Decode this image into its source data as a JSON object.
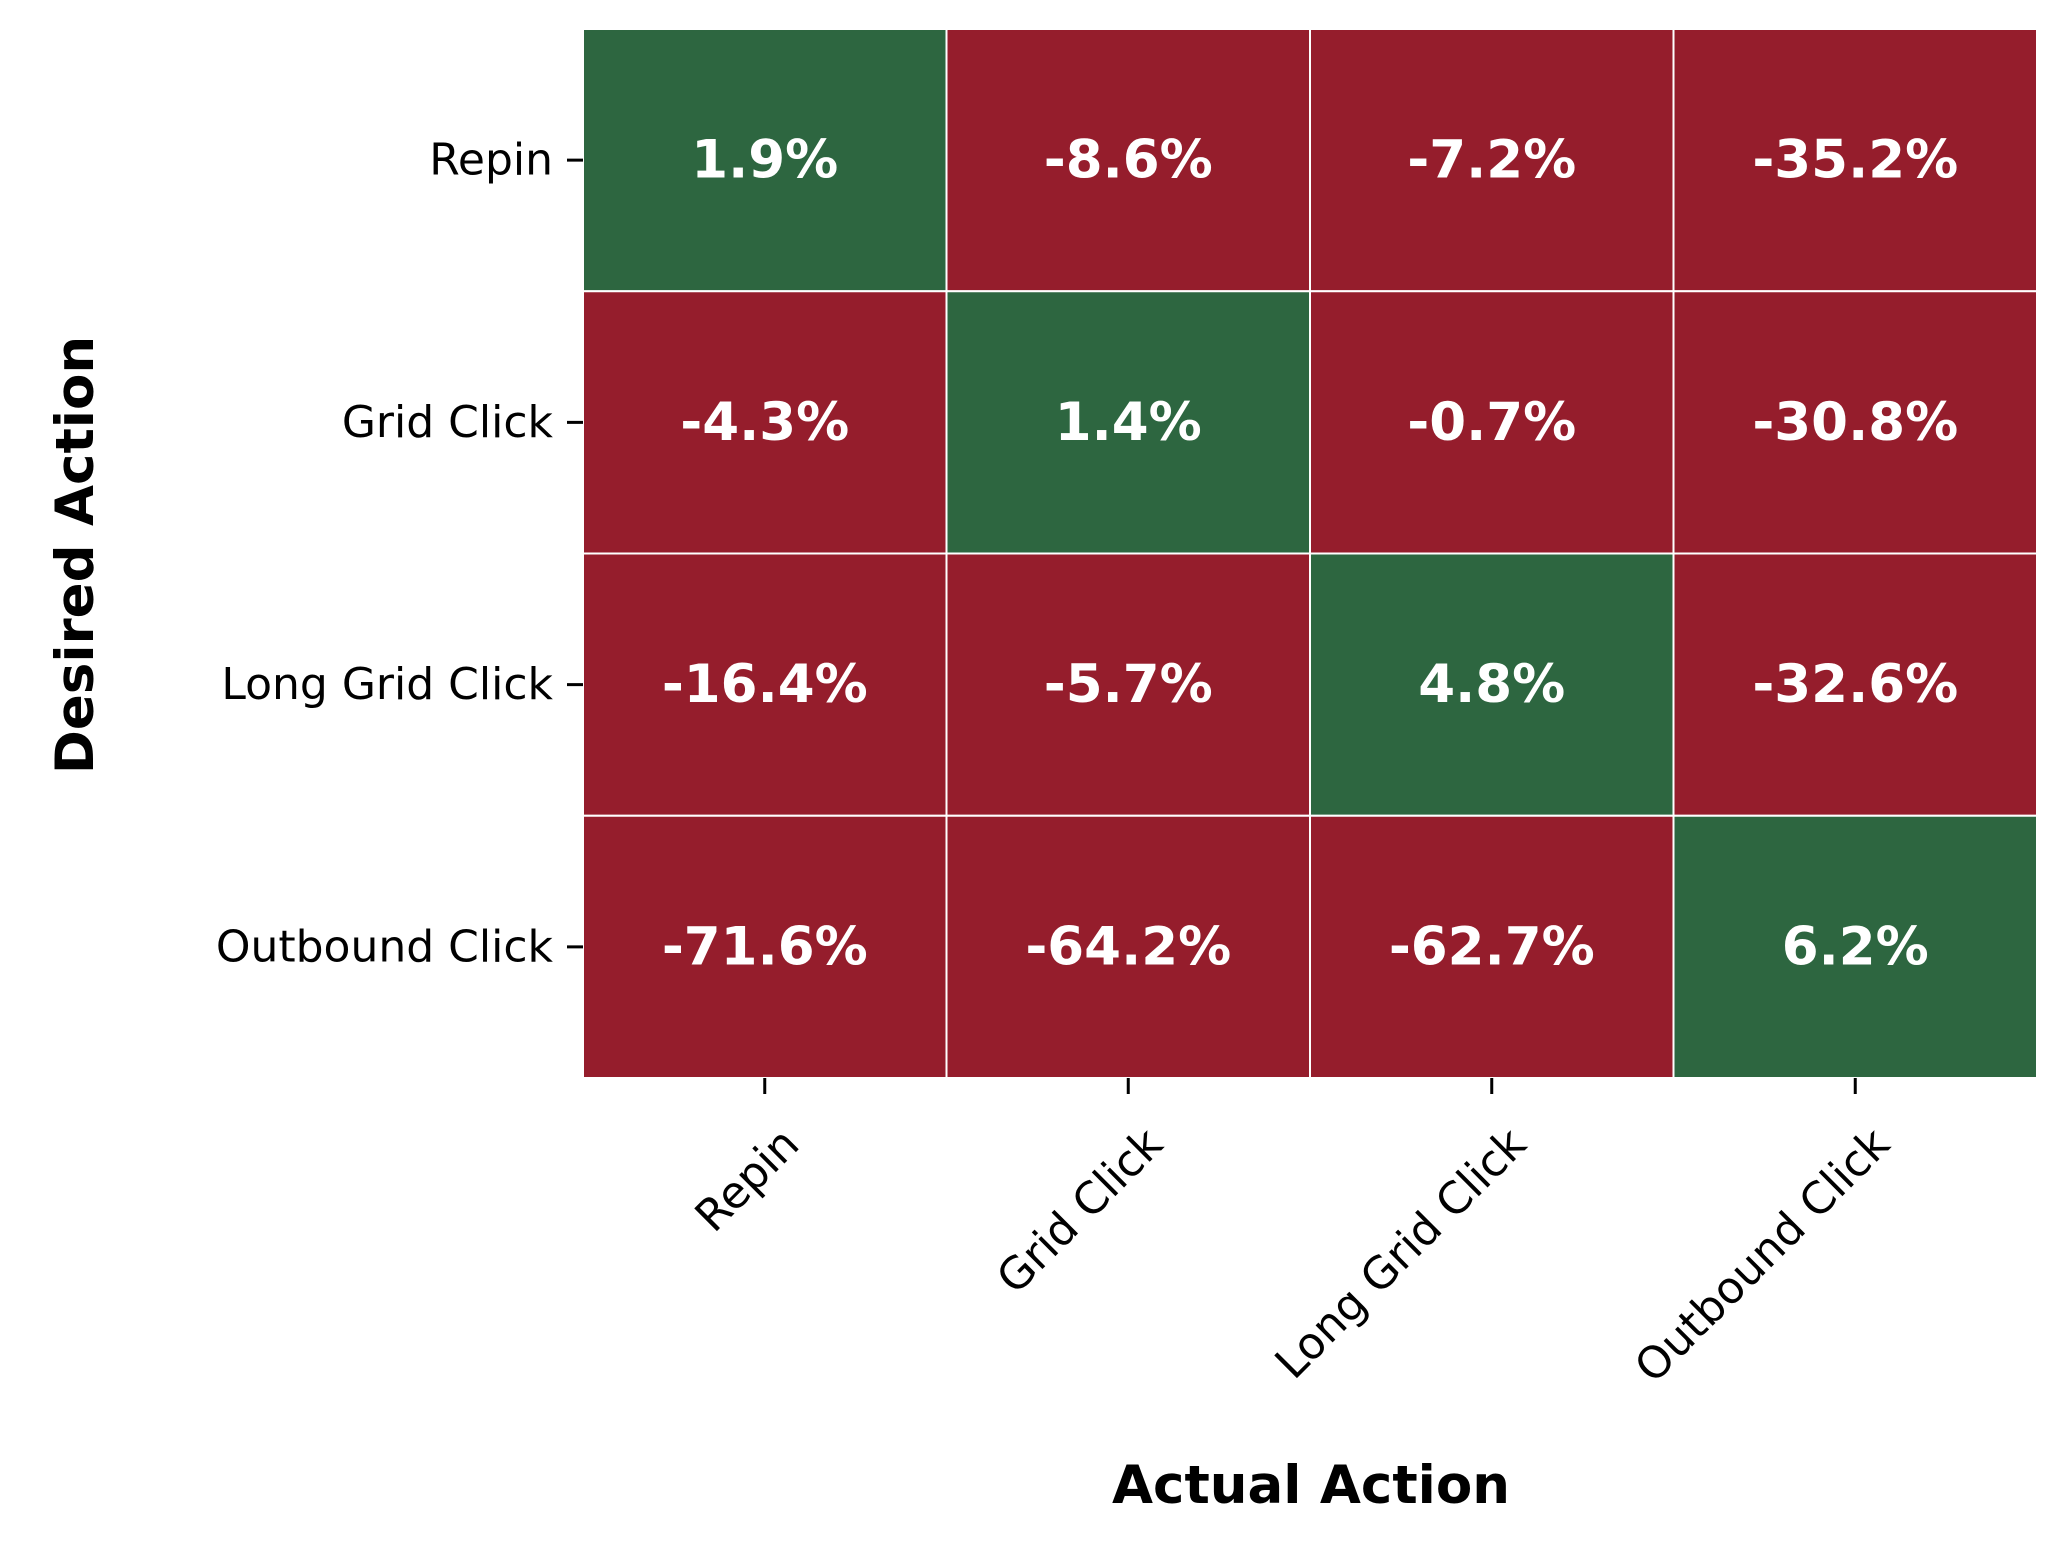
{
  "colors": {
    "positive": "#2d6640",
    "negative": "#951d2c",
    "cell_border": "#ffffff",
    "text_on_cell": "#ffffff",
    "axis_text": "#000000"
  },
  "chart_data": {
    "type": "heatmap",
    "title": "",
    "xlabel": "Actual Action",
    "ylabel": "Desired Action",
    "x_categories": [
      "Repin",
      "Grid Click",
      "Long Grid Click",
      "Outbound Click"
    ],
    "y_categories": [
      "Repin",
      "Grid Click",
      "Long Grid Click",
      "Outbound Click"
    ],
    "values": [
      [
        1.9,
        -8.6,
        -7.2,
        -35.2
      ],
      [
        -4.3,
        1.4,
        -0.7,
        -30.8
      ],
      [
        -16.4,
        -5.7,
        4.8,
        -32.6
      ],
      [
        -71.6,
        -64.2,
        -62.7,
        6.2
      ]
    ],
    "labels": [
      [
        "1.9%",
        "-8.6%",
        "-7.2%",
        "-35.2%"
      ],
      [
        "-4.3%",
        "1.4%",
        "-0.7%",
        "-30.8%"
      ],
      [
        "-16.4%",
        "-5.7%",
        "4.8%",
        "-32.6%"
      ],
      [
        "-71.6%",
        "-64.2%",
        "-62.7%",
        "6.2%"
      ]
    ],
    "unit": "%",
    "legend": "none",
    "grid": false
  }
}
